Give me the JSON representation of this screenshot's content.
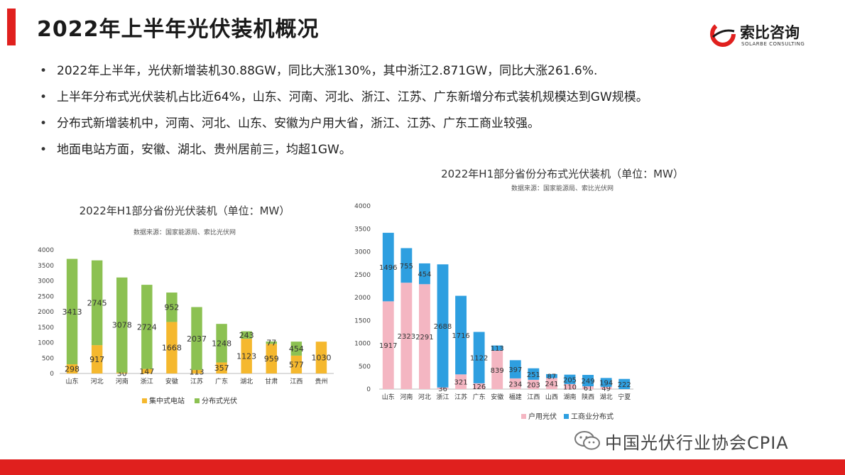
{
  "header": {
    "title": "2022年上半年光伏装机概况",
    "logo_name": "索比咨询",
    "logo_sub": "SOLARBE CONSULTING",
    "accent_color": "#e0201e"
  },
  "bullets": [
    "2022年上半年，光伏新增装机30.88GW，同比大涨130%，其中浙江2.871GW，同比大涨261.6%.",
    "上半年分布式光伏装机占比近64%，山东、河南、河北、浙江、江苏、广东新增分布式装机规模达到GW规模。",
    "分布式新增装机中，河南、河北、山东、安徽为户用大省，浙江、江苏、广东工商业较强。",
    "地面电站方面，安徽、湖北、贵州居前三，均超1GW。"
  ],
  "watermark": {
    "icon": "wechat-icon",
    "text": "中国光伏行业协会CPIA"
  },
  "chart_data": [
    {
      "type": "bar",
      "stacked": true,
      "title": "2022年H1部分省份光伏装机（单位：MW）",
      "subtitle": "数据来源：国家能源局、索比光伏网",
      "categories": [
        "山东",
        "河北",
        "河南",
        "浙江",
        "安徽",
        "江苏",
        "广东",
        "湖北",
        "甘肃",
        "江西",
        "贵州"
      ],
      "series": [
        {
          "name": "集中式电站",
          "color": "#f5b82e",
          "values": [
            298,
            917,
            30,
            147,
            1668,
            113,
            357,
            1123,
            959,
            577,
            1030
          ]
        },
        {
          "name": "分布式光伏",
          "color": "#8cc152",
          "values": [
            3413,
            2745,
            3078,
            2724,
            952,
            2037,
            1248,
            243,
            77,
            454,
            0
          ]
        }
      ],
      "ylim": [
        0,
        4000
      ],
      "yticks": [
        0,
        500,
        1000,
        1500,
        2000,
        2500,
        3000,
        3500,
        4000
      ],
      "legend": "bottom"
    },
    {
      "type": "bar",
      "stacked": true,
      "title": "2022年H1部分省份分布式光伏装机（单位：MW）",
      "subtitle": "数据来源：国家能源局、索比光伏网",
      "categories": [
        "山东",
        "河南",
        "河北",
        "浙江",
        "江苏",
        "广东",
        "安徽",
        "福建",
        "江西",
        "山西",
        "湖南",
        "陕西",
        "湖北",
        "宁夏"
      ],
      "series": [
        {
          "name": "户用光伏",
          "color": "#f4b6c2",
          "values": [
            1917,
            2323,
            2291,
            36,
            321,
            126,
            839,
            234,
            203,
            241,
            110,
            61,
            49,
            0
          ]
        },
        {
          "name": "工商业分布式",
          "color": "#2e9fe0",
          "values": [
            1496,
            755,
            454,
            2688,
            1716,
            1122,
            113,
            397,
            251,
            87,
            205,
            249,
            194,
            222
          ]
        }
      ],
      "ylim": [
        0,
        4000
      ],
      "yticks": [
        0,
        500,
        1000,
        1500,
        2000,
        2500,
        3000,
        3500,
        4000
      ],
      "legend": "bottom"
    }
  ]
}
